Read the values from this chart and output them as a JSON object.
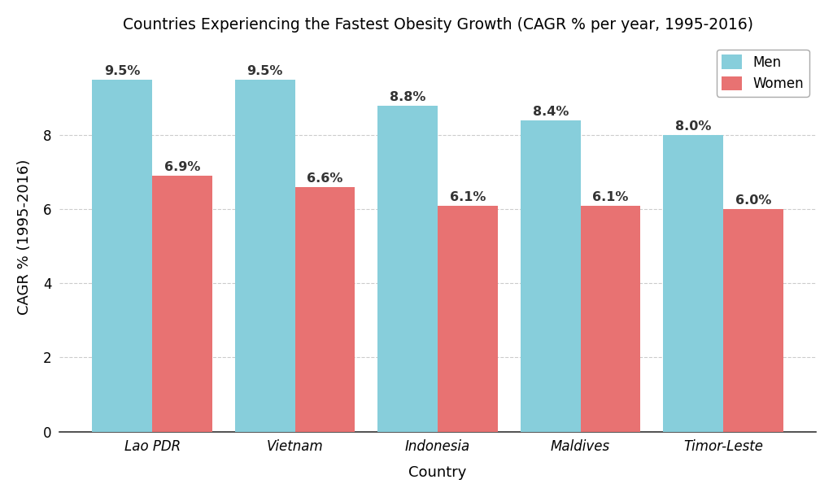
{
  "title": "Countries Experiencing the Fastest Obesity Growth (CAGR % per year, 1995-2016)",
  "xlabel": "Country",
  "ylabel": "CAGR % (1995-2016)",
  "categories": [
    "Lao PDR",
    "Vietnam",
    "Indonesia",
    "Maldives",
    "Timor-Leste"
  ],
  "men_values": [
    9.5,
    9.5,
    8.8,
    8.4,
    8.0
  ],
  "women_values": [
    6.9,
    6.6,
    6.1,
    6.1,
    6.0
  ],
  "men_color": "#87CEDB",
  "women_color": "#E87272",
  "ylim": [
    0,
    10.5
  ],
  "yticks": [
    0,
    2,
    4,
    6,
    8
  ],
  "legend_labels": [
    "Men",
    "Women"
  ],
  "bar_width": 0.42,
  "title_fontsize": 13.5,
  "axis_label_fontsize": 13,
  "tick_fontsize": 12,
  "annotation_fontsize": 11.5,
  "background_color": "#ffffff",
  "grid_color": "#cccccc"
}
